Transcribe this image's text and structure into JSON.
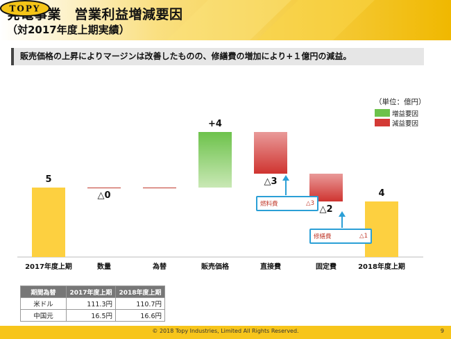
{
  "header": {
    "title": "発電事業　営業利益増減要因",
    "subtitle": "（対2017年度上期実績）",
    "logo_text": "TOPY",
    "colors": {
      "band": "#f5c518",
      "band_dark": "#e0a800"
    }
  },
  "summary": "販売価格の上昇によりマージンは改善したものの、修繕費の増加により+１億円の減益。",
  "unit": "（単位：億円）",
  "legend": [
    {
      "label": "増益要因",
      "color": "#6dc24b"
    },
    {
      "label": "減益要因",
      "color": "#d33a35"
    }
  ],
  "chart_data": {
    "type": "bar",
    "subtype": "waterfall",
    "categories": [
      "2017年度上期",
      "数量",
      "為替",
      "販売価格",
      "直接費",
      "固定費",
      "2018年度上期"
    ],
    "value_labels": [
      "5",
      "△0",
      "",
      "+4",
      "△3",
      "△2",
      "4"
    ],
    "steps": [
      {
        "kind": "total",
        "value": 5
      },
      {
        "kind": "delta",
        "value": 0
      },
      {
        "kind": "delta",
        "value": 0
      },
      {
        "kind": "delta",
        "value": 4
      },
      {
        "kind": "delta",
        "value": -3
      },
      {
        "kind": "delta",
        "value": -2
      },
      {
        "kind": "total",
        "value": 4
      }
    ],
    "colors": {
      "total": "#fdd040",
      "increase": "#6dc24b",
      "decrease": "#d33a35",
      "neutral": "#c0392b"
    },
    "ylim": [
      0,
      10
    ]
  },
  "callouts": [
    {
      "label": "燃料費",
      "value": "△3"
    },
    {
      "label": "修繕費",
      "value": "△1"
    }
  ],
  "rates": {
    "headers": [
      "期間為替",
      "2017年度上期",
      "2018年度上期"
    ],
    "rows": [
      [
        "米ドル",
        "111.3円",
        "110.7円"
      ],
      [
        "中国元",
        "16.5円",
        "16.6円"
      ]
    ]
  },
  "footer": {
    "copyright": "© 2018 Topy Industries, Limited All Rights Reserved.",
    "page": "9"
  }
}
